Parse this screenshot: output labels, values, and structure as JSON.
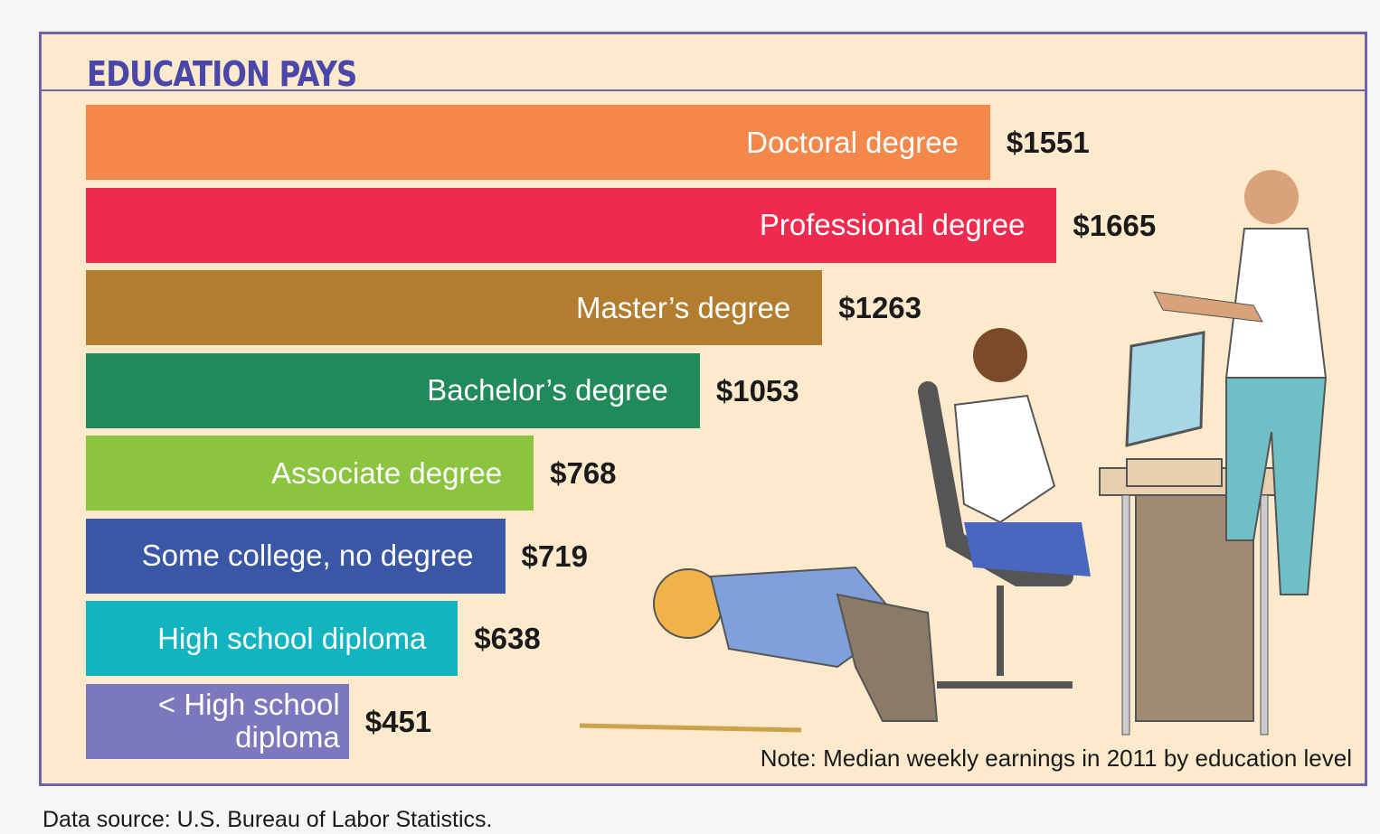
{
  "chart_data": {
    "type": "bar",
    "orientation": "horizontal",
    "title": "EDUCATION PAYS",
    "categories": [
      "Doctoral degree",
      "Professional degree",
      "Master’s degree",
      "Bachelor’s degree",
      "Associate degree",
      "Some college, no degree",
      "High school diploma",
      "< High school diploma"
    ],
    "values": [
      1551,
      1665,
      1263,
      1053,
      768,
      719,
      638,
      451
    ],
    "value_labels": [
      "$1551",
      "$1665",
      "$1263",
      "$1053",
      "$768",
      "$719",
      "$638",
      "$451"
    ],
    "colors": [
      "#f4884a",
      "#ee2a4e",
      "#b27d2f",
      "#218a5a",
      "#8bc540",
      "#3a57a6",
      "#12b5bf",
      "#7b78bd"
    ],
    "note": "Note: Median weekly earnings in 2011 by education level",
    "source": "Data source: U.S. Bureau of Labor Statistics."
  }
}
